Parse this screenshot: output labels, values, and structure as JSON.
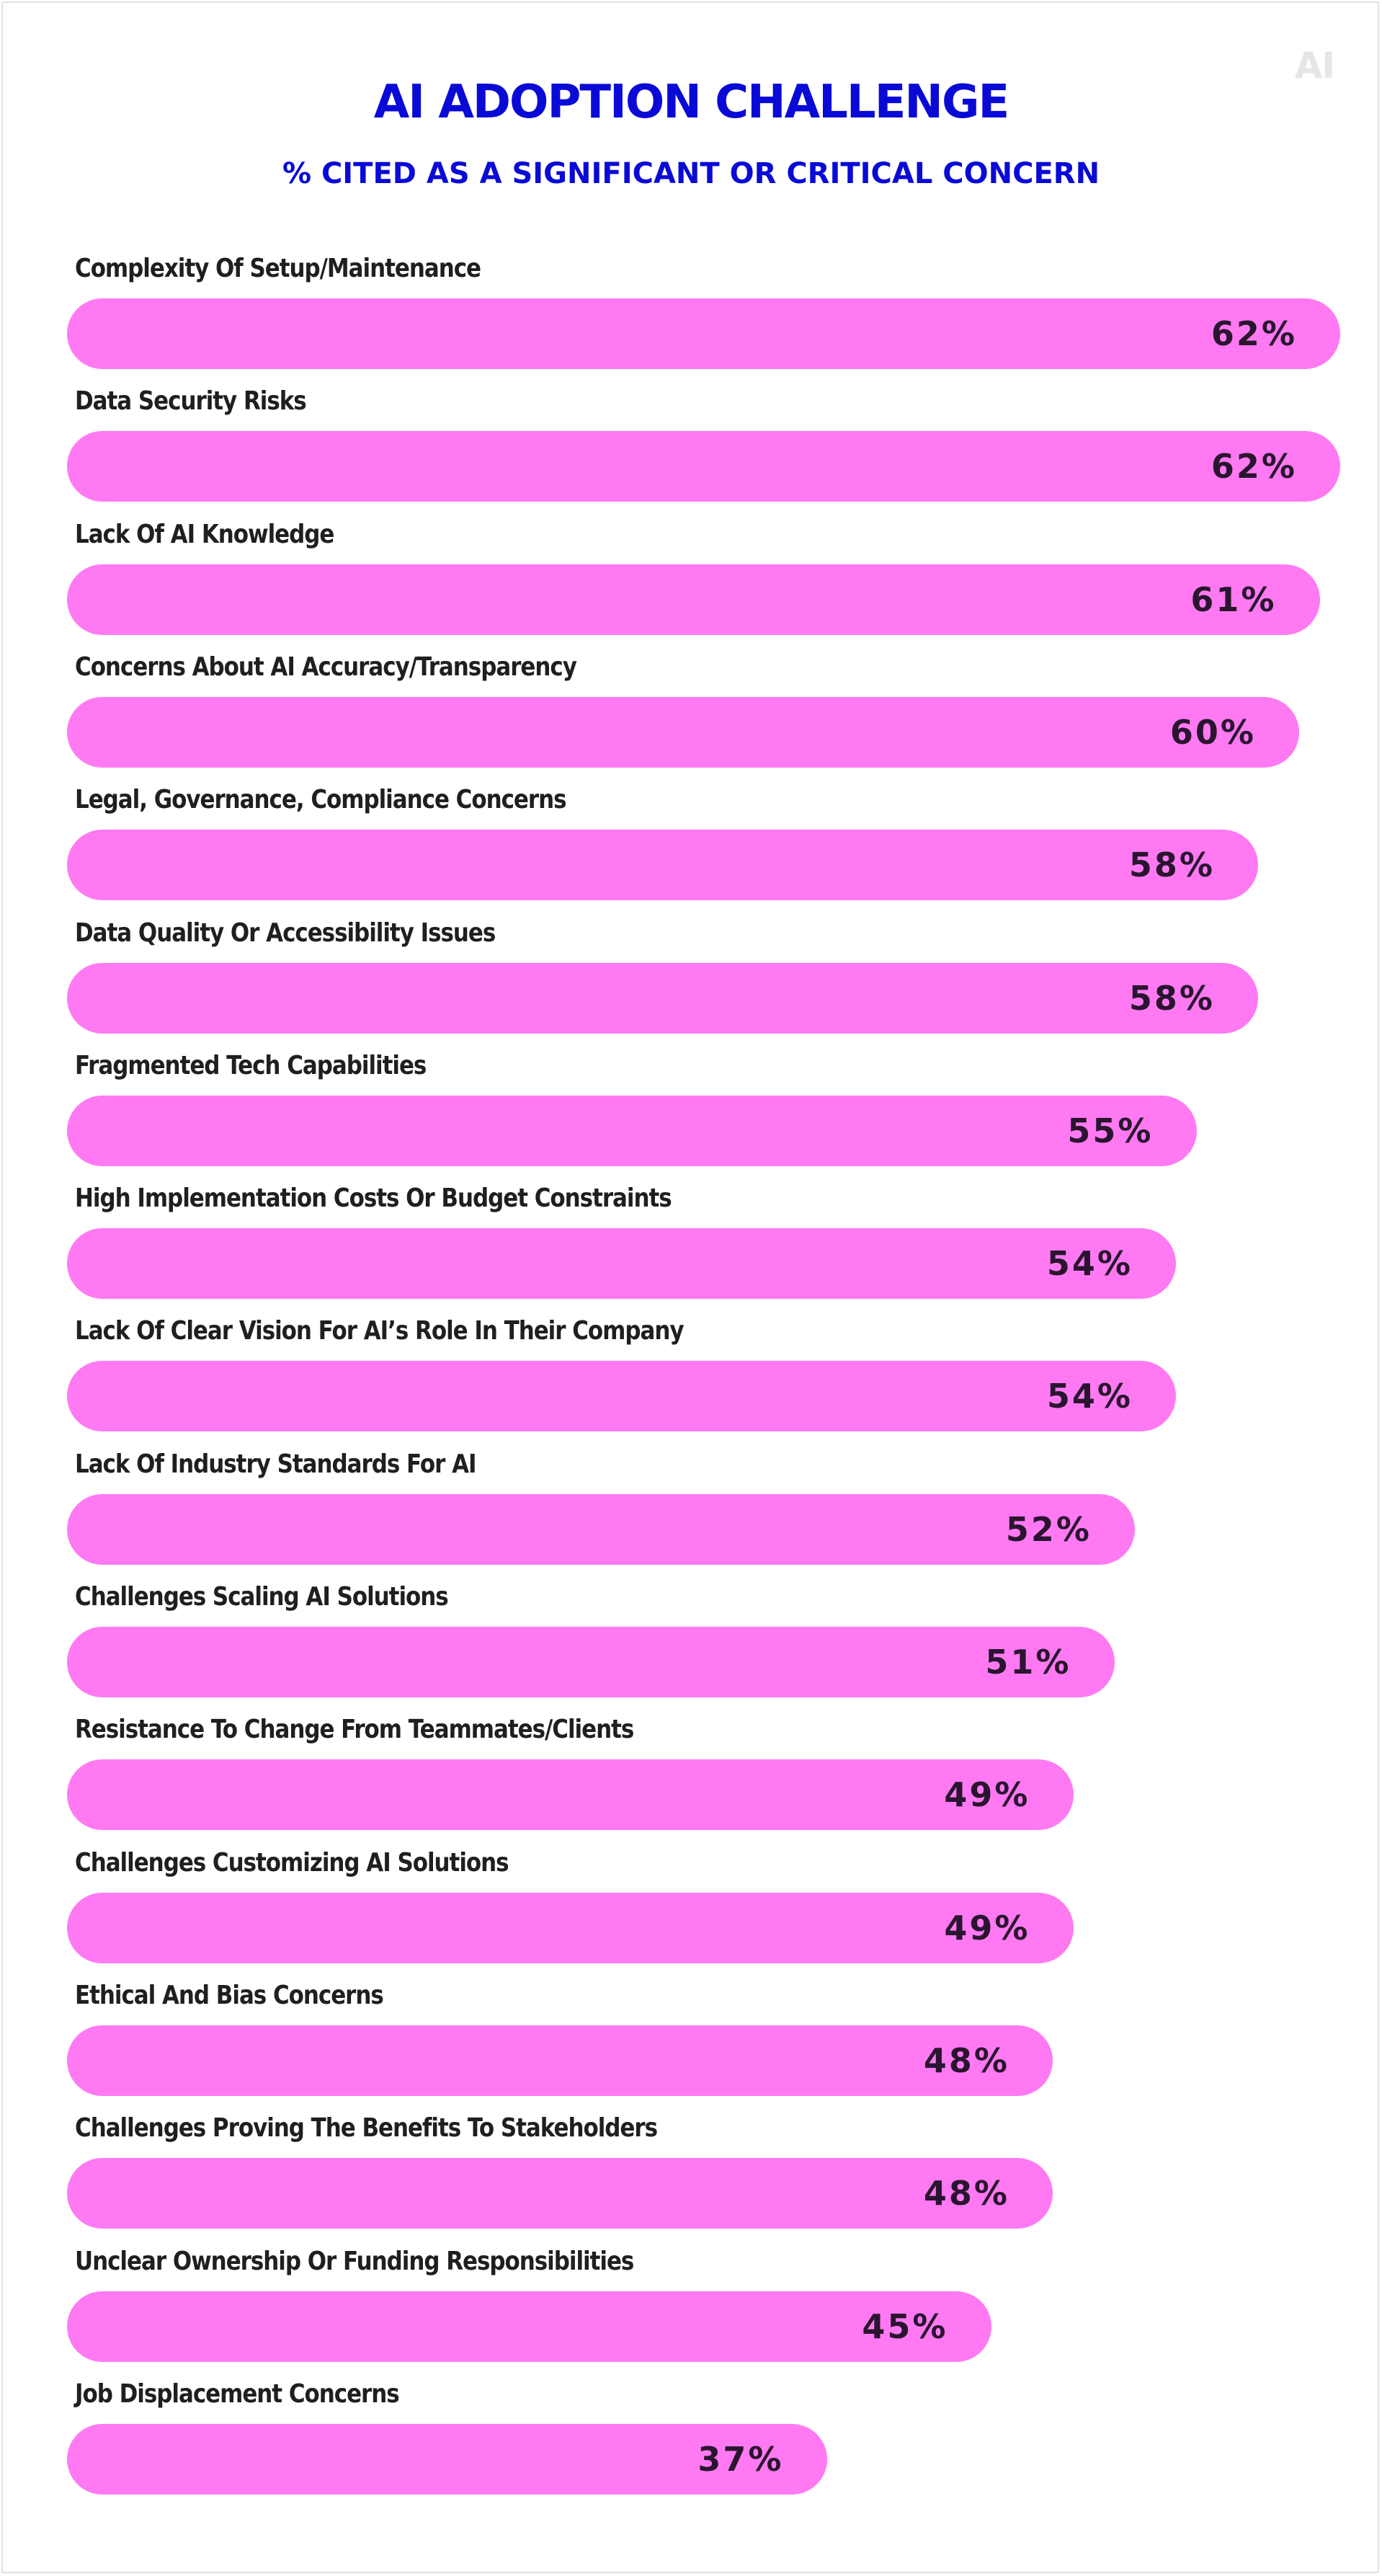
{
  "logo_text": "AI",
  "colors": {
    "title": "#0a0ad6",
    "bar": "#ff7af2",
    "label": "#1f1f1f",
    "value": "#2a1530",
    "logo": "#e6e6e6"
  },
  "chart_data": {
    "type": "bar",
    "orientation": "horizontal",
    "title": "AI ADOPTION CHALLENGE",
    "subtitle": "% CITED AS A SIGNIFICANT OR CRITICAL CONCERN",
    "xlim": [
      0,
      70
    ],
    "grid": false,
    "legend": "none",
    "categories": [
      "Complexity Of Setup/Maintenance",
      "Data Security Risks",
      "Lack Of AI Knowledge",
      "Concerns About AI Accuracy/Transparency",
      "Legal, Governance, Compliance Concerns",
      "Data Quality Or Accessibility Issues",
      "Fragmented Tech Capabilities",
      "High Implementation Costs Or Budget Constraints",
      "Lack Of Clear Vision For AI’s Role In Their Company",
      "Lack Of Industry Standards For AI",
      "Challenges Scaling AI Solutions",
      "Resistance To Change From Teammates/Clients",
      "Challenges Customizing AI Solutions",
      "Ethical And Bias Concerns",
      "Challenges Proving The Benefits To Stakeholders",
      "Unclear Ownership Or Funding Responsibilities",
      "Job Displacement Concerns"
    ],
    "values": [
      62,
      62,
      61,
      60,
      58,
      58,
      55,
      54,
      54,
      52,
      51,
      49,
      49,
      48,
      48,
      45,
      37
    ],
    "value_labels": [
      "62%",
      "62%",
      "61%",
      "60%",
      "58%",
      "58%",
      "55%",
      "54%",
      "54%",
      "52%",
      "51%",
      "49%",
      "49%",
      "48%",
      "48%",
      "45%",
      "37%"
    ]
  }
}
